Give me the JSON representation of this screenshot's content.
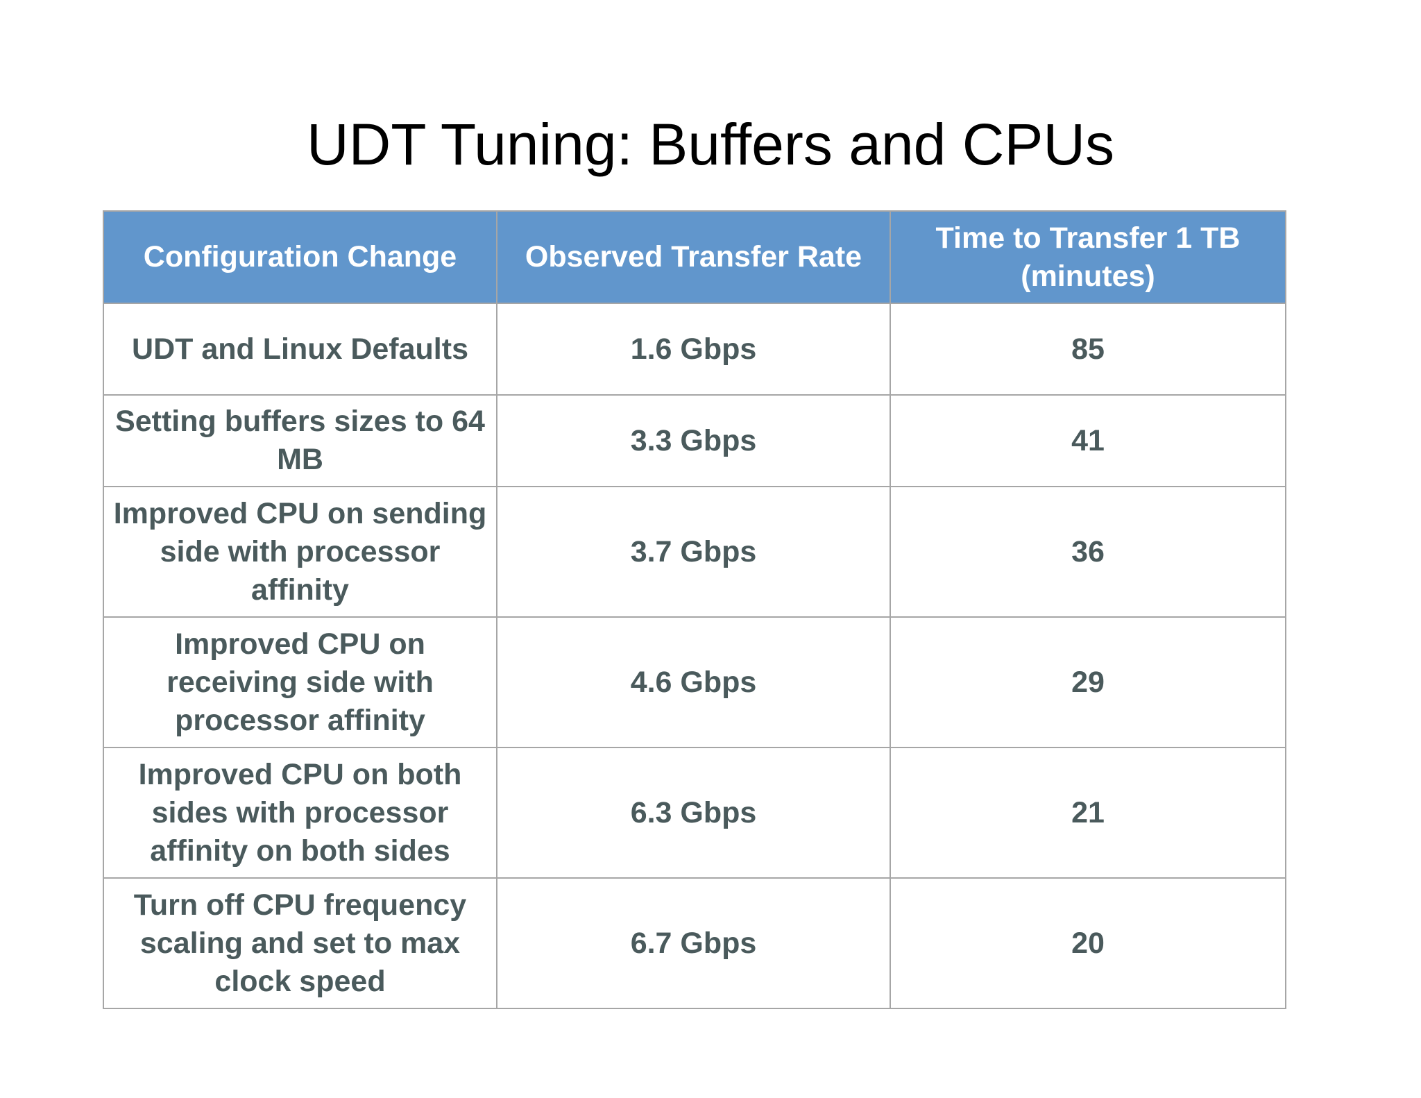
{
  "title": "UDT Tuning: Buffers and CPUs",
  "table": {
    "headers": [
      "Configuration Change",
      "Observed Transfer Rate",
      "Time to Transfer 1 TB (minutes)"
    ],
    "rows": [
      [
        "UDT and Linux Defaults",
        "1.6 Gbps",
        "85"
      ],
      [
        "Setting buffers sizes to 64 MB",
        "3.3 Gbps",
        "41"
      ],
      [
        "Improved CPU on sending side with processor affinity",
        "3.7 Gbps",
        "36"
      ],
      [
        "Improved CPU on receiving side with processor affinity",
        "4.6 Gbps",
        "29"
      ],
      [
        "Improved CPU on both sides with processor affinity on both sides",
        "6.3 Gbps",
        "21"
      ],
      [
        "Turn off CPU frequency scaling and set to max clock speed",
        "6.7 Gbps",
        "20"
      ]
    ]
  },
  "colors": {
    "header_background": "#6196cc",
    "header_text": "#ffffff",
    "cell_text": "#4a5a5c",
    "border": "#a6a6a6"
  }
}
